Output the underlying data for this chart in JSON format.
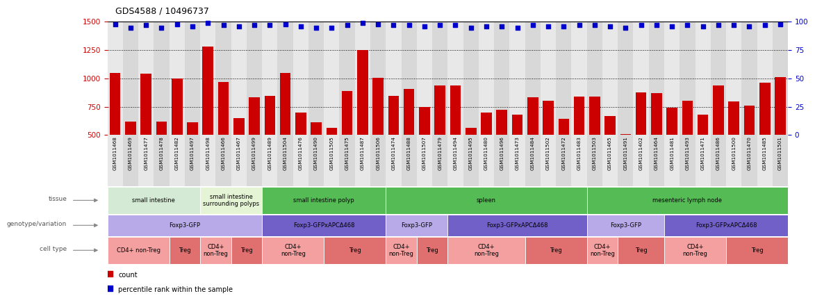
{
  "title": "GDS4588 / 10496737",
  "samples": [
    "GSM1011468",
    "GSM1011469",
    "GSM1011477",
    "GSM1011478",
    "GSM1011482",
    "GSM1011497",
    "GSM1011498",
    "GSM1011466",
    "GSM1011467",
    "GSM1011499",
    "GSM1011489",
    "GSM1011504",
    "GSM1011476",
    "GSM1011490",
    "GSM1011505",
    "GSM1011475",
    "GSM1011487",
    "GSM1011506",
    "GSM1011474",
    "GSM1011488",
    "GSM1011507",
    "GSM1011479",
    "GSM1011494",
    "GSM1011495",
    "GSM1011480",
    "GSM1011496",
    "GSM1011473",
    "GSM1011484",
    "GSM1011502",
    "GSM1011472",
    "GSM1011483",
    "GSM1011503",
    "GSM1011465",
    "GSM1011491",
    "GSM1011402",
    "GSM1011464",
    "GSM1011481",
    "GSM1011493",
    "GSM1011471",
    "GSM1011486",
    "GSM1011500",
    "GSM1011470",
    "GSM1011485",
    "GSM1011501"
  ],
  "counts": [
    1050,
    620,
    1040,
    620,
    1000,
    615,
    1280,
    970,
    650,
    830,
    845,
    1045,
    700,
    615,
    560,
    890,
    1250,
    1005,
    845,
    905,
    750,
    940,
    935,
    560,
    700,
    720,
    680,
    835,
    805,
    640,
    840,
    840,
    665,
    510,
    875,
    870,
    740,
    800,
    680,
    940,
    795,
    760,
    965,
    1010
  ],
  "percentiles": [
    98,
    95,
    97,
    95,
    98,
    96,
    99,
    97,
    96,
    97,
    97,
    98,
    96,
    95,
    95,
    97,
    99,
    98,
    97,
    97,
    96,
    97,
    97,
    95,
    96,
    96,
    95,
    97,
    96,
    96,
    97,
    97,
    96,
    95,
    97,
    97,
    96,
    97,
    96,
    97,
    97,
    96,
    97,
    98
  ],
  "ylim_left": [
    500,
    1500
  ],
  "ylim_right": [
    0,
    100
  ],
  "yticks_left": [
    500,
    750,
    1000,
    1250,
    1500
  ],
  "yticks_right": [
    0,
    25,
    50,
    75,
    100
  ],
  "bar_color": "#cc0000",
  "dot_color": "#0000cc",
  "tissue_row": {
    "label": "tissue",
    "segments": [
      {
        "text": "small intestine",
        "start": 0,
        "end": 6,
        "color": "#d4ead4"
      },
      {
        "text": "small intestine\nsurrounding polyps",
        "start": 6,
        "end": 10,
        "color": "#e4f4d4"
      },
      {
        "text": "small intestine polyp",
        "start": 10,
        "end": 18,
        "color": "#55bb55"
      },
      {
        "text": "spleen",
        "start": 18,
        "end": 31,
        "color": "#55bb55"
      },
      {
        "text": "mesenteric lymph node",
        "start": 31,
        "end": 44,
        "color": "#55bb55"
      }
    ]
  },
  "genotype_row": {
    "label": "genotype/variation",
    "segments": [
      {
        "text": "Foxp3-GFP",
        "start": 0,
        "end": 10,
        "color": "#b8aae8"
      },
      {
        "text": "Foxp3-GFPxAPCΔ468",
        "start": 10,
        "end": 18,
        "color": "#7060c8"
      },
      {
        "text": "Foxp3-GFP",
        "start": 18,
        "end": 22,
        "color": "#b8aae8"
      },
      {
        "text": "Foxp3-GFPxAPCΔ468",
        "start": 22,
        "end": 31,
        "color": "#7060c8"
      },
      {
        "text": "Foxp3-GFP",
        "start": 31,
        "end": 36,
        "color": "#b8aae8"
      },
      {
        "text": "Foxp3-GFPxAPCΔ468",
        "start": 36,
        "end": 44,
        "color": "#7060c8"
      }
    ]
  },
  "celltype_row": {
    "label": "cell type",
    "segments": [
      {
        "text": "CD4+ non-Treg",
        "start": 0,
        "end": 4,
        "color": "#f4a0a0"
      },
      {
        "text": "Treg",
        "start": 4,
        "end": 6,
        "color": "#e07070"
      },
      {
        "text": "CD4+\nnon-Treg",
        "start": 6,
        "end": 8,
        "color": "#f4a0a0"
      },
      {
        "text": "Treg",
        "start": 8,
        "end": 10,
        "color": "#e07070"
      },
      {
        "text": "CD4+\nnon-Treg",
        "start": 10,
        "end": 14,
        "color": "#f4a0a0"
      },
      {
        "text": "Treg",
        "start": 14,
        "end": 18,
        "color": "#e07070"
      },
      {
        "text": "CD4+\nnon-Treg",
        "start": 18,
        "end": 20,
        "color": "#f4a0a0"
      },
      {
        "text": "Treg",
        "start": 20,
        "end": 22,
        "color": "#e07070"
      },
      {
        "text": "CD4+\nnon-Treg",
        "start": 22,
        "end": 27,
        "color": "#f4a0a0"
      },
      {
        "text": "Treg",
        "start": 27,
        "end": 31,
        "color": "#e07070"
      },
      {
        "text": "CD4+\nnon-Treg",
        "start": 31,
        "end": 33,
        "color": "#f4a0a0"
      },
      {
        "text": "Treg",
        "start": 33,
        "end": 36,
        "color": "#e07070"
      },
      {
        "text": "CD4+\nnon-Treg",
        "start": 36,
        "end": 40,
        "color": "#f4a0a0"
      },
      {
        "text": "Treg",
        "start": 40,
        "end": 44,
        "color": "#e07070"
      }
    ]
  },
  "bg_color": "#f0f0f0"
}
